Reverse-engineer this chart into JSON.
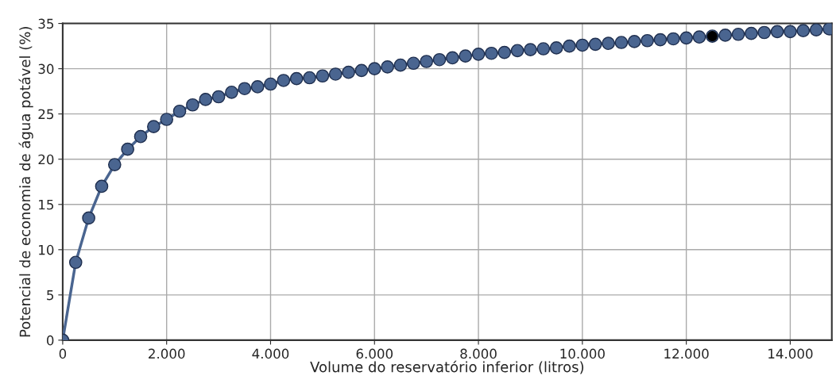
{
  "chart_data": {
    "type": "line",
    "xlabel": "Volume do reservatório inferior (litros)",
    "ylabel": "Potencial de economia de água potável (%)",
    "x": [
      0,
      250,
      500,
      750,
      1000,
      1250,
      1500,
      1750,
      2000,
      2250,
      2500,
      2750,
      3000,
      3250,
      3500,
      3750,
      4000,
      4250,
      4500,
      4750,
      5000,
      5250,
      5500,
      5750,
      6000,
      6250,
      6500,
      6750,
      7000,
      7250,
      7500,
      7750,
      8000,
      8250,
      8500,
      8750,
      9000,
      9250,
      9500,
      9750,
      10000,
      10250,
      10500,
      10750,
      11000,
      11250,
      11500,
      11750,
      12000,
      12250,
      12500,
      12750,
      13000,
      13250,
      13500,
      13750,
      14000,
      14250,
      14500,
      14750
    ],
    "series": [
      {
        "color": "#4a6590",
        "values": [
          0,
          8.6,
          13.5,
          17.0,
          19.4,
          21.1,
          22.5,
          23.6,
          24.4,
          25.3,
          26.0,
          26.6,
          26.9,
          27.4,
          27.8,
          28.0,
          28.3,
          28.7,
          28.9,
          29.0,
          29.2,
          29.4,
          29.6,
          29.8,
          30.0,
          30.2,
          30.4,
          30.6,
          30.8,
          31.0,
          31.2,
          31.4,
          31.6,
          31.7,
          31.8,
          32.0,
          32.1,
          32.2,
          32.3,
          32.5,
          32.6,
          32.7,
          32.8,
          32.9,
          33.0,
          33.1,
          33.2,
          33.3,
          33.4,
          33.5,
          33.6,
          33.7,
          33.8,
          33.9,
          34.0,
          34.1,
          34.1,
          34.2,
          34.3,
          34.4
        ]
      },
      {
        "type": "scatter",
        "color": "#000000",
        "x": [
          12500
        ],
        "values": [
          33.6
        ]
      }
    ],
    "xlim": [
      0,
      14800
    ],
    "ylim": [
      0,
      35
    ],
    "xticks": [
      0,
      {
        "value": 2000,
        "label": "2.000"
      },
      {
        "value": 4000,
        "label": "4.000"
      },
      {
        "value": 6000,
        "label": "6.000"
      },
      {
        "value": 8000,
        "label": "8.000"
      },
      {
        "value": 10000,
        "label": "10.000"
      },
      {
        "value": 12000,
        "label": "12.000"
      },
      {
        "value": 14000,
        "label": "14.000"
      }
    ],
    "yticks": [
      0,
      5,
      10,
      15,
      20,
      25,
      30,
      35
    ],
    "grid": true,
    "marker": "circle",
    "line_style": "solid"
  }
}
